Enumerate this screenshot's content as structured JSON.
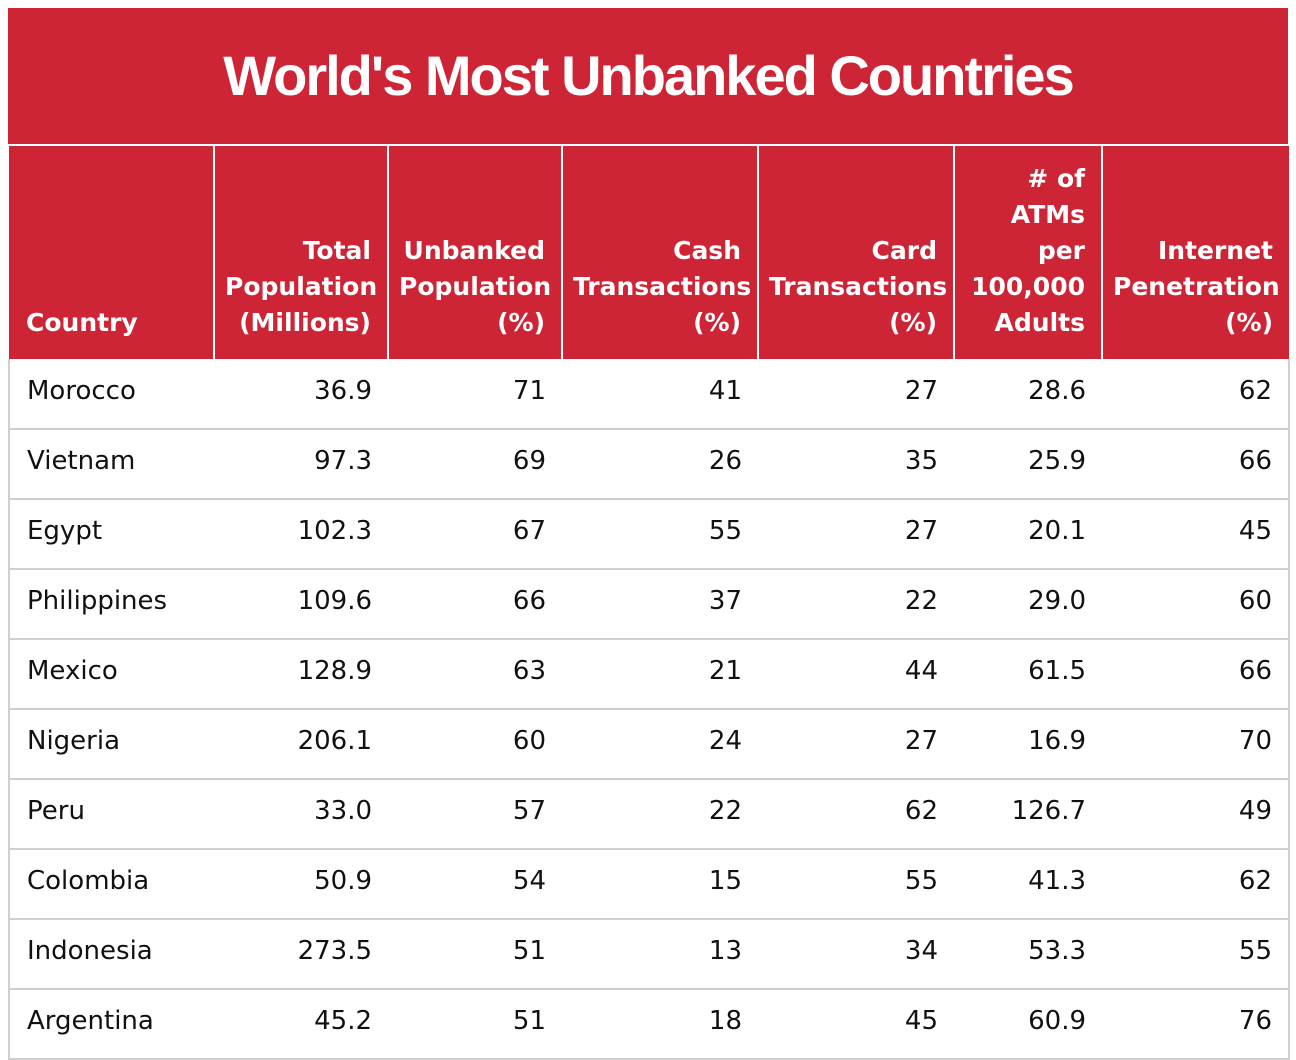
{
  "chart_data": {
    "type": "table",
    "title": "World's Most Unbanked Countries",
    "columns": [
      [
        "Country"
      ],
      [
        "Total",
        "Population",
        "(Millions)"
      ],
      [
        "Unbanked",
        "Population",
        "(%)"
      ],
      [
        "Cash",
        "Transactions",
        "(%)"
      ],
      [
        "Card",
        "Transactions",
        "(%)"
      ],
      [
        "# of",
        "ATMs",
        "per",
        "100,000",
        "Adults"
      ],
      [
        "Internet",
        "Penetration",
        "(%)"
      ]
    ],
    "rows": [
      [
        "Morocco",
        "36.9",
        "71",
        "41",
        "27",
        "28.6",
        "62"
      ],
      [
        "Vietnam",
        "97.3",
        "69",
        "26",
        "35",
        "25.9",
        "66"
      ],
      [
        "Egypt",
        "102.3",
        "67",
        "55",
        "27",
        "20.1",
        "45"
      ],
      [
        "Philippines",
        "109.6",
        "66",
        "37",
        "22",
        "29.0",
        "60"
      ],
      [
        "Mexico",
        "128.9",
        "63",
        "21",
        "44",
        "61.5",
        "66"
      ],
      [
        "Nigeria",
        "206.1",
        "60",
        "24",
        "27",
        "16.9",
        "70"
      ],
      [
        "Peru",
        "33.0",
        "57",
        "22",
        "62",
        "126.7",
        "49"
      ],
      [
        "Colombia",
        "50.9",
        "54",
        "15",
        "55",
        "41.3",
        "62"
      ],
      [
        "Indonesia",
        "273.5",
        "51",
        "13",
        "34",
        "53.3",
        "55"
      ],
      [
        "Argentina",
        "45.2",
        "51",
        "18",
        "45",
        "60.9",
        "76"
      ]
    ]
  },
  "colors": {
    "header_background": "#cd2536",
    "header_text": "#ffffff",
    "body_text": "#111111",
    "grid_line": "#cfcfcf"
  }
}
